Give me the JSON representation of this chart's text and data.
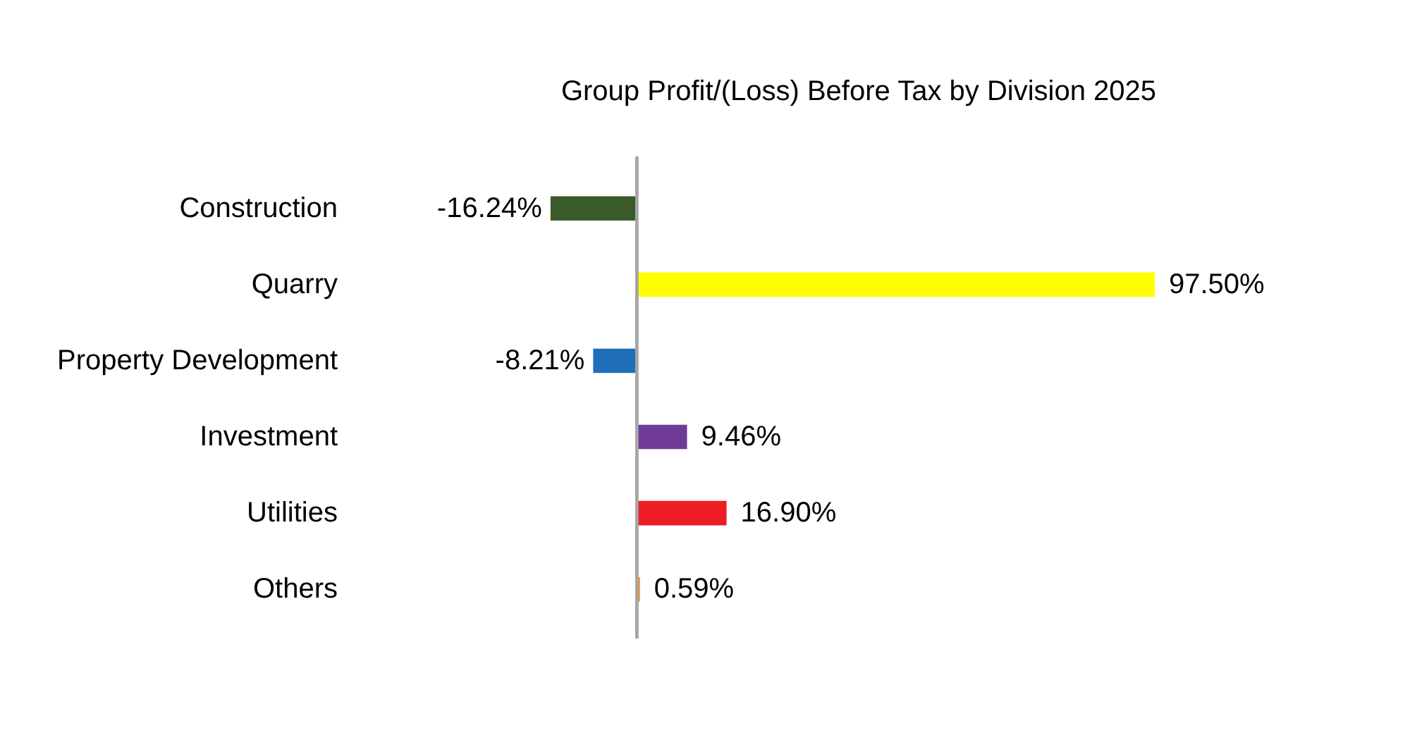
{
  "chart_data": {
    "type": "bar",
    "orientation": "horizontal",
    "title": "Group Profit/(Loss) Before Tax by Division 2025",
    "categories": [
      "Construction",
      "Quarry",
      "Property Development",
      "Investment",
      "Utilities",
      "Others"
    ],
    "values": [
      -16.24,
      97.5,
      -8.21,
      9.46,
      16.9,
      0.59
    ],
    "colors": [
      "#3b5a29",
      "#ffff00",
      "#1f6fb8",
      "#6f3a98",
      "#ee1c25",
      "#f28e2b"
    ],
    "value_labels": [
      "-16.24%",
      "97.50%",
      "-8.21%",
      "9.46%",
      "16.90%",
      "0.59%"
    ]
  }
}
